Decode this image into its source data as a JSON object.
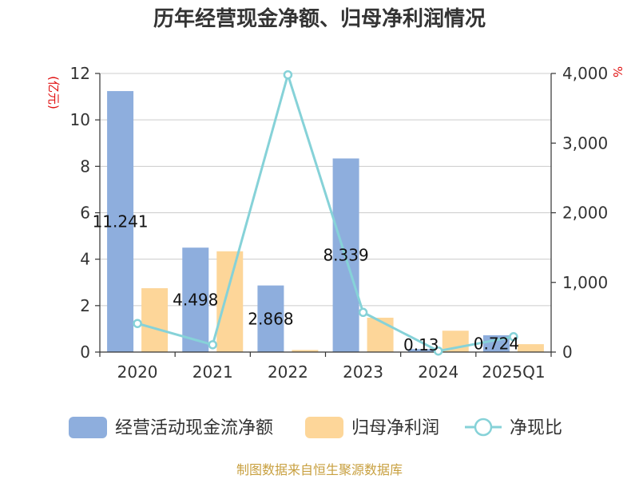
{
  "title": "历年经营现金净额、归母净利润情况",
  "source": "制图数据来自恒生聚源数据库",
  "chart_data": {
    "type": "bar",
    "categories": [
      "2020",
      "2021",
      "2022",
      "2023",
      "2024",
      "2025Q1"
    ],
    "series": [
      {
        "name": "经营活动现金流净额",
        "type": "bar",
        "axis": "left",
        "color": "#8eaedd",
        "values": [
          11.241,
          4.498,
          2.868,
          8.339,
          0.13,
          0.724
        ],
        "labels": [
          "11.241",
          "4.498",
          "2.868",
          "8.339",
          "0.13",
          "0.724"
        ]
      },
      {
        "name": "归母净利润",
        "type": "bar",
        "axis": "left",
        "color": "#fdd699",
        "values": [
          2.75,
          4.34,
          0.09,
          1.48,
          0.92,
          0.34
        ]
      },
      {
        "name": "净现比",
        "type": "line",
        "axis": "right",
        "color": "#86d2d8",
        "values": [
          410,
          105,
          3980,
          570,
          15,
          220
        ]
      }
    ],
    "y_left": {
      "label": "(亿元)",
      "min": 0,
      "max": 12,
      "ticks": [
        0,
        2,
        4,
        6,
        8,
        10,
        12
      ],
      "tick_labels": [
        "0",
        "2",
        "4",
        "6",
        "8",
        "10",
        "12"
      ]
    },
    "y_right": {
      "label": "%",
      "min": 0,
      "max": 4000,
      "ticks": [
        0,
        1000,
        2000,
        3000,
        4000
      ],
      "tick_labels": [
        "0",
        "1,000",
        "2,000",
        "3,000",
        "4,000"
      ]
    },
    "grid": true,
    "legend_position": "bottom"
  }
}
